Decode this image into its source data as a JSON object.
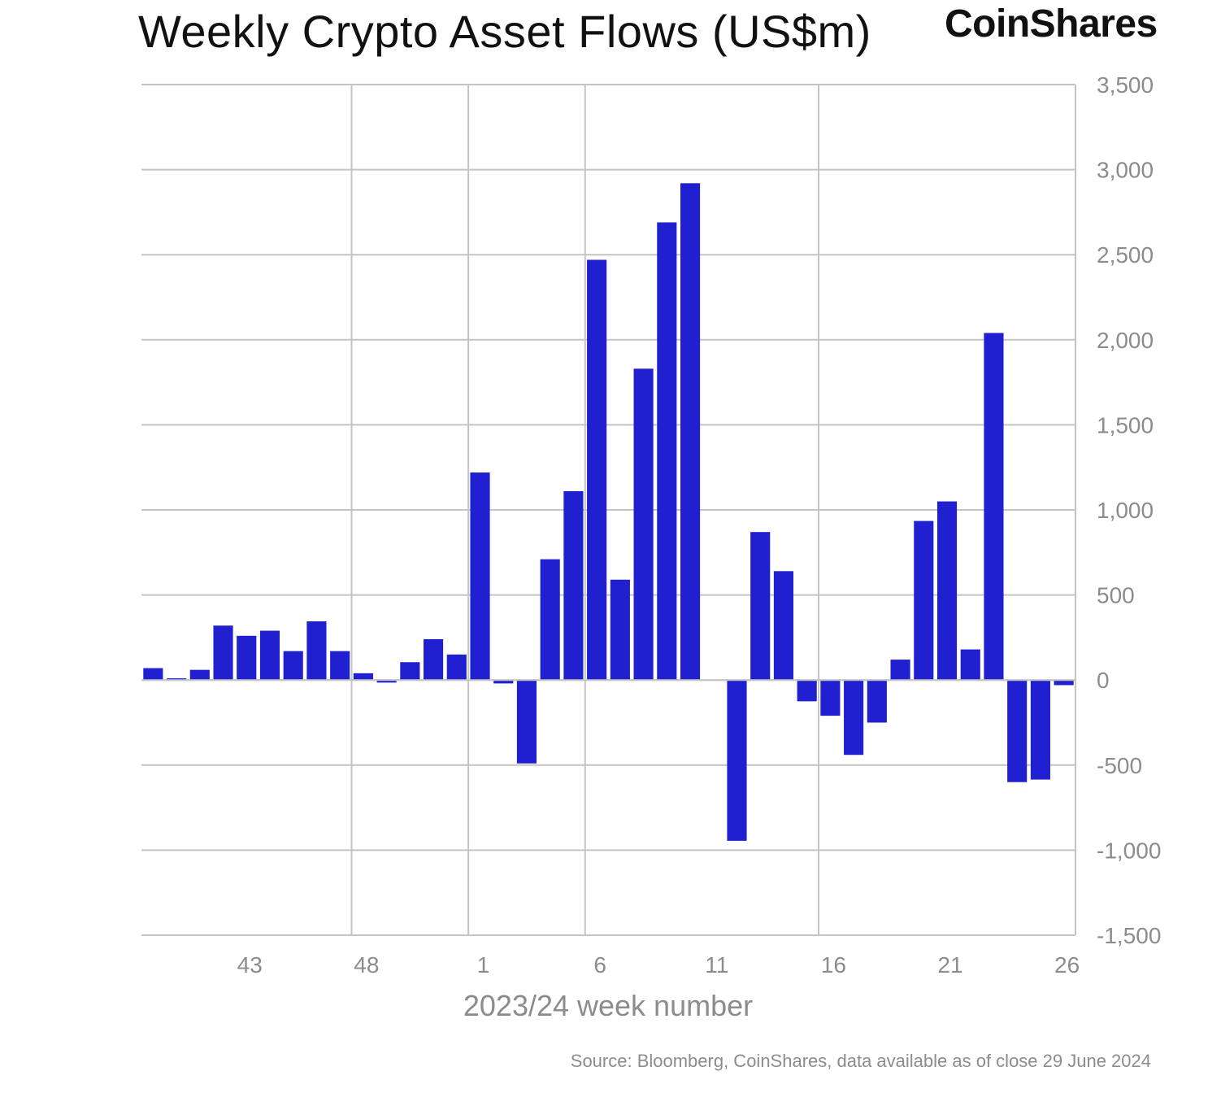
{
  "logo": {
    "text": "CoinShares"
  },
  "colors": {
    "bar": "#2020d0",
    "grid": "#c4c4c4",
    "tick_text": "#8c8c8c",
    "title_text": "#111111"
  },
  "chart_data": {
    "type": "bar",
    "title": "Weekly Crypto Asset Flows (US$m)",
    "xlabel": "2023/24 week number",
    "ylabel": "",
    "ylim": [
      -1500,
      3500
    ],
    "y_ticks": [
      -1500,
      -1000,
      -500,
      0,
      500,
      1000,
      1500,
      2000,
      2500,
      3000,
      3500
    ],
    "y_tick_labels": [
      "-1,500",
      "-1,000",
      "-500",
      "0",
      "500",
      "1,000",
      "1,500",
      "2,000",
      "2,500",
      "3,000",
      "3,500"
    ],
    "x_tick_labels": [
      "43",
      "48",
      "1",
      "6",
      "11",
      "16",
      "21",
      "26"
    ],
    "x_tick_categories": [
      "43",
      "48",
      "1",
      "6",
      "11",
      "16",
      "21",
      "26"
    ],
    "y_axis_position": "right",
    "grid": true,
    "vertical_grid_categories": [
      "47",
      "52",
      "5",
      "15"
    ],
    "categories": [
      "39",
      "40",
      "41",
      "42",
      "43",
      "44",
      "45",
      "46",
      "47",
      "48",
      "49",
      "50",
      "51",
      "52",
      "1",
      "2",
      "3",
      "4",
      "5",
      "6",
      "7",
      "8",
      "9",
      "10",
      "11",
      "12",
      "13",
      "14",
      "15",
      "16",
      "17",
      "18",
      "19",
      "20",
      "21",
      "22",
      "23",
      "24",
      "25",
      "26"
    ],
    "values": [
      70,
      10,
      60,
      320,
      260,
      290,
      170,
      345,
      170,
      40,
      -15,
      105,
      240,
      150,
      1220,
      -20,
      -490,
      710,
      1110,
      2470,
      590,
      1830,
      2690,
      2920,
      0,
      -945,
      870,
      640,
      -125,
      -210,
      -440,
      -250,
      120,
      935,
      1050,
      180,
      2040,
      -600,
      -585,
      -30
    ],
    "source": "Source: Bloomberg, CoinShares, data available as of close 29 June 2024"
  }
}
